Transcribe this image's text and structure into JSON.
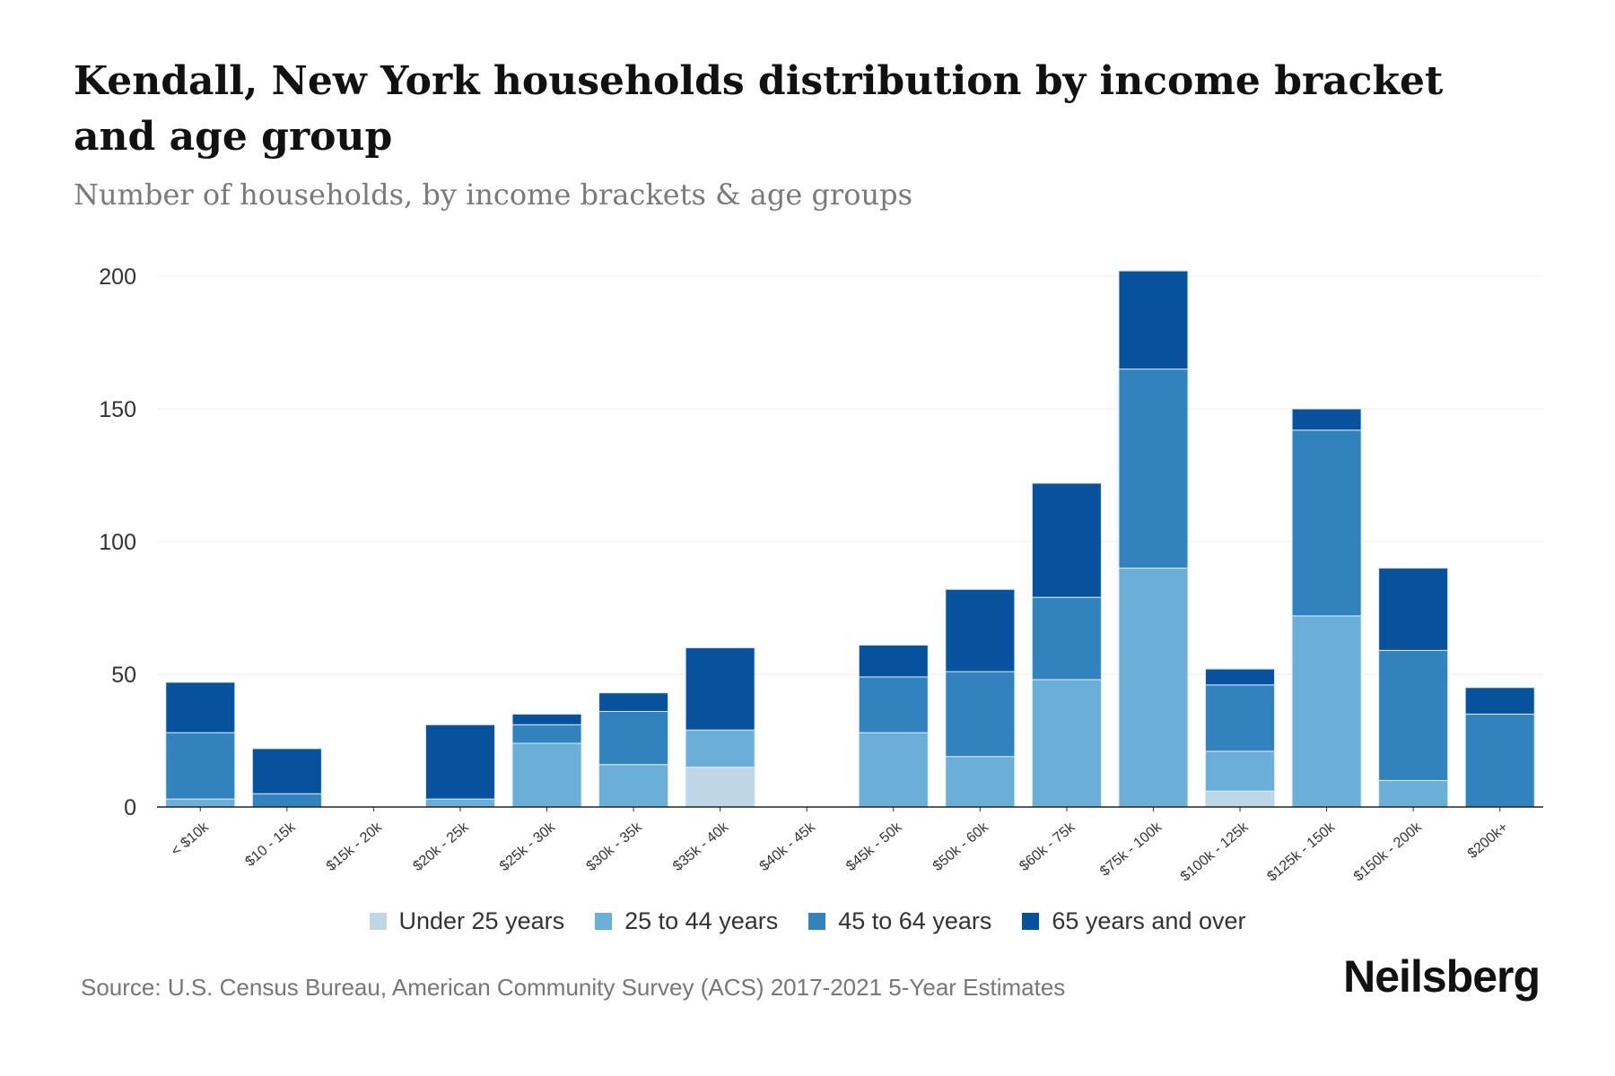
{
  "title": "Kendall, New York households distribution by income bracket and age group",
  "subtitle": "Number of households, by income brackets & age groups",
  "source": "Source: U.S. Census Bureau, American Community Survey (ACS) 2017-2021 5-Year Estimates",
  "logo": "Neilsberg",
  "chart_data": {
    "type": "bar",
    "stacked": true,
    "title": "Kendall, New York households distribution by income bracket and age group",
    "xlabel": "",
    "ylabel": "Number of households",
    "ylim": [
      0,
      200
    ],
    "yticks": [
      0,
      50,
      100,
      150,
      200
    ],
    "grid": true,
    "legend_placement": "bottom",
    "categories": [
      "< $10k",
      "$10 - 15k",
      "$15k - 20k",
      "$20k - 25k",
      "$25k - 30k",
      "$30k - 35k",
      "$35k - 40k",
      "$40k - 45k",
      "$45k - 50k",
      "$50k - 60k",
      "$60k - 75k",
      "$75k - 100k",
      "$100k - 125k",
      "$125k - 150k",
      "$150k - 200k",
      "$200k+"
    ],
    "series": [
      {
        "name": "Under 25 years",
        "color": "#bdd7e7",
        "values": [
          0,
          0,
          0,
          0,
          0,
          0,
          15,
          0,
          0,
          0,
          0,
          0,
          6,
          0,
          0,
          0
        ]
      },
      {
        "name": "25 to 44 years",
        "color": "#6baed6",
        "values": [
          3,
          0,
          0,
          3,
          24,
          16,
          14,
          0,
          28,
          19,
          48,
          90,
          15,
          72,
          10,
          0
        ]
      },
      {
        "name": "45 to 64 years",
        "color": "#3182bd",
        "values": [
          25,
          5,
          0,
          0,
          7,
          20,
          0,
          0,
          21,
          32,
          31,
          75,
          25,
          70,
          49,
          35
        ]
      },
      {
        "name": "65 years and over",
        "color": "#08519c",
        "values": [
          19,
          17,
          0,
          28,
          4,
          7,
          31,
          0,
          12,
          31,
          43,
          37,
          6,
          8,
          31,
          10
        ]
      }
    ]
  }
}
